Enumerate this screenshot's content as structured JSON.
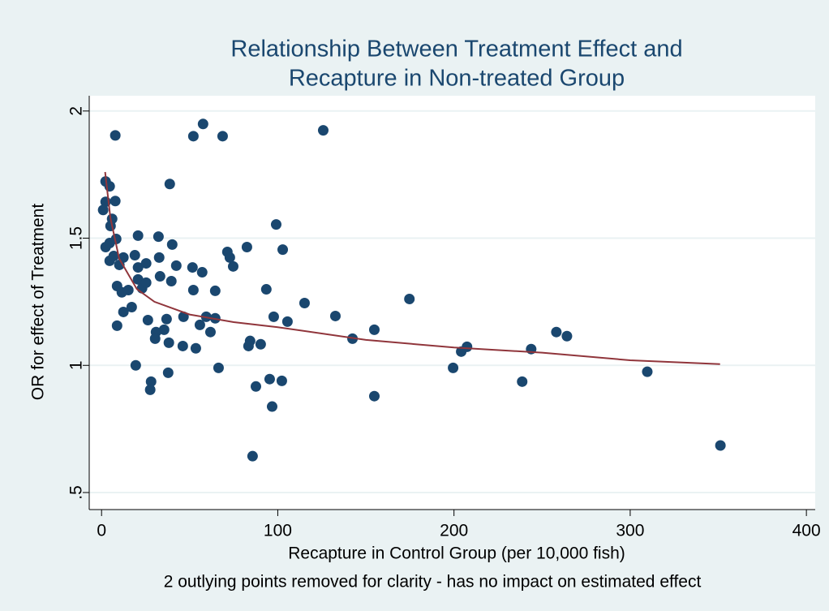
{
  "chart_data": {
    "type": "scatter",
    "title": [
      "Relationship Between Treatment Effect and",
      "Recapture in Non-treated Group"
    ],
    "x_label": "Recapture in Control Group (per 10,000 fish)",
    "y_label": "OR for effect of Treatment",
    "note": "2 outlying points removed for clarity - has no impact on estimated effect",
    "xlim": [
      -7,
      405
    ],
    "ylim": [
      0.433,
      2.06
    ],
    "xticks": [
      0,
      100,
      200,
      300,
      400
    ],
    "yticks": [
      {
        "value": 0.5,
        "label": ".5"
      },
      1,
      1.5,
      2
    ],
    "grid": true,
    "color": "#1a476f",
    "x": [
      7.8,
      57.6,
      52.1,
      68.7,
      125.8,
      2.3,
      4.6,
      38.7,
      2.3,
      7.8,
      0.9,
      6.0,
      5.1,
      99.1,
      8.3,
      2.3,
      4.6,
      20.7,
      32.3,
      40.1,
      4.6,
      6.9,
      12.4,
      10.1,
      18.9,
      20.7,
      25.3,
      32.7,
      42.4,
      51.6,
      57.1,
      71.4,
      72.8,
      74.7,
      82.5,
      102.8,
      8.8,
      11.5,
      15.2,
      20.7,
      23.0,
      25.3,
      33.2,
      39.6,
      52.1,
      64.5,
      93.5,
      115.2,
      174.7,
      12.4,
      17.1,
      8.8,
      26.3,
      36.9,
      46.5,
      59.4,
      64.5,
      55.8,
      61.8,
      35.5,
      30.9,
      30.4,
      38.2,
      46.1,
      53.5,
      84.3,
      83.4,
      90.3,
      97.7,
      105.5,
      132.7,
      142.4,
      154.8,
      258.1,
      264.1,
      207.4,
      204.1,
      243.8,
      19.4,
      66.4,
      37.8,
      28.1,
      27.6,
      95.4,
      102.3,
      87.6,
      96.8,
      154.8,
      199.5,
      238.7,
      309.7,
      351.2,
      85.7
    ],
    "values": [
      1.904,
      1.949,
      1.901,
      1.901,
      1.924,
      1.723,
      1.704,
      1.713,
      1.643,
      1.646,
      1.611,
      1.576,
      1.548,
      1.554,
      1.497,
      1.465,
      1.481,
      1.51,
      1.506,
      1.475,
      1.411,
      1.43,
      1.424,
      1.395,
      1.433,
      1.385,
      1.401,
      1.424,
      1.392,
      1.385,
      1.366,
      1.446,
      1.424,
      1.389,
      1.465,
      1.455,
      1.312,
      1.287,
      1.296,
      1.338,
      1.303,
      1.325,
      1.35,
      1.331,
      1.296,
      1.293,
      1.299,
      1.245,
      1.261,
      1.21,
      1.229,
      1.156,
      1.178,
      1.182,
      1.191,
      1.191,
      1.185,
      1.159,
      1.131,
      1.14,
      1.131,
      1.105,
      1.089,
      1.076,
      1.067,
      1.096,
      1.076,
      1.083,
      1.191,
      1.172,
      1.194,
      1.105,
      1.14,
      1.131,
      1.115,
      1.073,
      1.054,
      1.064,
      1.0,
      0.99,
      0.971,
      0.936,
      0.904,
      0.946,
      0.939,
      0.917,
      0.838,
      0.879,
      0.99,
      0.936,
      0.975,
      0.685,
      0.643
    ],
    "fit": {
      "color": "#90353b",
      "x": [
        2,
        5,
        10,
        20,
        30,
        50,
        75,
        100,
        150,
        200,
        250,
        300,
        351
      ],
      "values": [
        1.76,
        1.58,
        1.42,
        1.3,
        1.25,
        1.2,
        1.17,
        1.15,
        1.1,
        1.07,
        1.05,
        1.02,
        1.005
      ]
    }
  }
}
